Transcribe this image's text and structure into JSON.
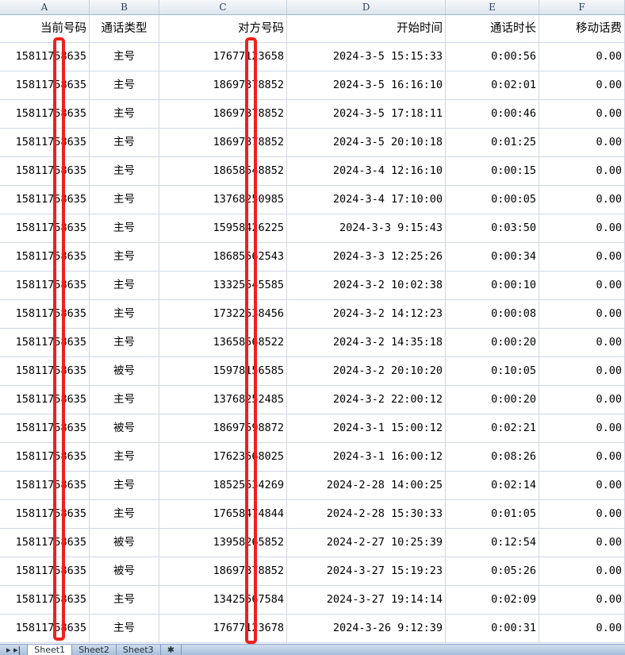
{
  "columns": [
    "A",
    "B",
    "C",
    "D",
    "E",
    "F"
  ],
  "headers": [
    "当前号码",
    "通话类型",
    "对方号码",
    "开始时间",
    "通话时长",
    "移动话费"
  ],
  "rows": [
    [
      "15811758635",
      "主号",
      "17677123658",
      "2024-3-5 15:15:33",
      "0:00:56",
      "0.00"
    ],
    [
      "15811758635",
      "主号",
      "18697378852",
      "2024-3-5 16:16:10",
      "0:02:01",
      "0.00"
    ],
    [
      "15811758635",
      "主号",
      "18697378852",
      "2024-3-5 17:18:11",
      "0:00:46",
      "0.00"
    ],
    [
      "15811758635",
      "主号",
      "18697378852",
      "2024-3-5 20:10:18",
      "0:01:25",
      "0.00"
    ],
    [
      "15811758635",
      "主号",
      "18658548852",
      "2024-3-4 12:16:10",
      "0:00:15",
      "0.00"
    ],
    [
      "15811758635",
      "主号",
      "13768250985",
      "2024-3-4 17:10:00",
      "0:00:05",
      "0.00"
    ],
    [
      "15811758635",
      "主号",
      "15958426225",
      "2024-3-3 9:15:43",
      "0:03:50",
      "0.00"
    ],
    [
      "15811758635",
      "主号",
      "18685562543",
      "2024-3-3 12:25:26",
      "0:00:34",
      "0.00"
    ],
    [
      "15811758635",
      "主号",
      "13325545585",
      "2024-3-2 10:02:38",
      "0:00:10",
      "0.00"
    ],
    [
      "15811758635",
      "主号",
      "17322538456",
      "2024-3-2 14:12:23",
      "0:00:08",
      "0.00"
    ],
    [
      "15811758635",
      "主号",
      "13658568522",
      "2024-3-2 14:35:18",
      "0:00:20",
      "0.00"
    ],
    [
      "15811758635",
      "被号",
      "15978156585",
      "2024-3-2 20:10:20",
      "0:10:05",
      "0.00"
    ],
    [
      "15811758635",
      "主号",
      "13768252485",
      "2024-3-2 22:00:12",
      "0:00:20",
      "0.00"
    ],
    [
      "15811758635",
      "被号",
      "18697598872",
      "2024-3-1 15:00:12",
      "0:02:21",
      "0.00"
    ],
    [
      "15811758635",
      "主号",
      "17623568025",
      "2024-3-1 16:00:12",
      "0:08:26",
      "0.00"
    ],
    [
      "15811758635",
      "主号",
      "18525534269",
      "2024-2-28 14:00:25",
      "0:02:14",
      "0.00"
    ],
    [
      "15811758635",
      "主号",
      "17658474844",
      "2024-2-28 15:30:33",
      "0:01:05",
      "0.00"
    ],
    [
      "15811758635",
      "被号",
      "13958265852",
      "2024-2-27 10:25:39",
      "0:12:54",
      "0.00"
    ],
    [
      "15811758635",
      "被号",
      "18697378852",
      "2024-3-27 15:19:23",
      "0:05:26",
      "0.00"
    ],
    [
      "15811758635",
      "主号",
      "13425567584",
      "2024-3-27 19:14:14",
      "0:02:09",
      "0.00"
    ],
    [
      "15811758635",
      "主号",
      "17677123678",
      "2024-3-26 9:12:39",
      "0:00:31",
      "0.00"
    ]
  ],
  "sheet_tabs": [
    "Sheet1",
    "Sheet2",
    "Sheet3"
  ],
  "active_sheet": "Sheet1",
  "colors": {
    "redaction": "#f0201a",
    "grid": "#d0d7e5"
  }
}
